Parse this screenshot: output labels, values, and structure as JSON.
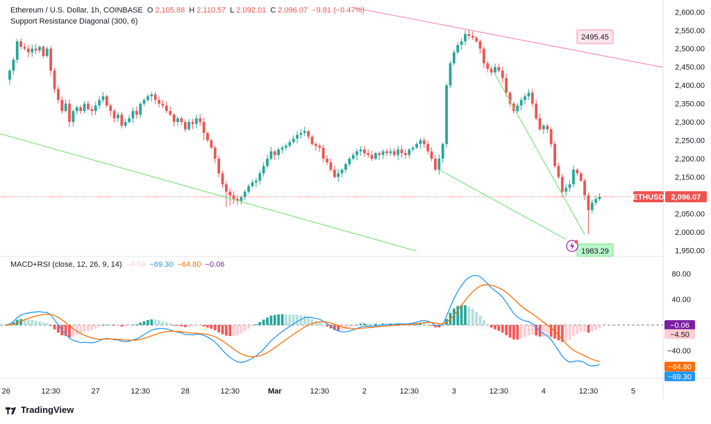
{
  "legend": {
    "symbol": "Ethereum / U.S. Dollar, 1h, COINBASE",
    "open_label": "O",
    "open": "2,105.88",
    "high_label": "H",
    "high": "2,110.57",
    "low_label": "L",
    "low": "2,092.01",
    "close_label": "C",
    "close": "2,096.07",
    "change": "−9.81 (−0.47%)",
    "indicator1": "Support Resistance Diagonal (300, 6)",
    "indicator2": "MACD+RSI (close, 12, 26, 9, 14)",
    "ind2_values": [
      "−4.50",
      "−69.30",
      "−64.80",
      "−0.06"
    ]
  },
  "colors": {
    "up": "#26a69a",
    "down": "#ef5350",
    "macd": "#2196f3",
    "signal": "#ff6d00",
    "hist_up_strong": "#26a69a",
    "hist_up_weak": "#b2dfdb",
    "hist_down_strong": "#ff5252",
    "hist_down_weak": "#ffcdd2",
    "support": "#7ee07e",
    "resistance": "#f48fb1",
    "price_line": "#ef5350",
    "rsi_badge": "#7b1fa2"
  },
  "price_badge": {
    "symbol": "ETHUSD",
    "value": "2,096.07"
  },
  "level_labels": {
    "resistance": "2495.45",
    "support": "1983.29"
  },
  "macd_badges": [
    "−0.06",
    "−4.50",
    "−64.80",
    "−69.30"
  ],
  "branding": {
    "name": "TradingView"
  },
  "chart_data": [
    {
      "type": "candlestick",
      "title": "Ethereum / U.S. Dollar, 1h, COINBASE",
      "y_ticks": [
        "2,600.00",
        "2,550.00",
        "2,500.00",
        "2,450.00",
        "2,400.00",
        "2,350.00",
        "2,300.00",
        "2,250.00",
        "2,200.00",
        "2,150.00",
        "2,100.00",
        "2,050.00",
        "2,000.00",
        "1,950.00"
      ],
      "ylim": [
        1945,
        2610
      ],
      "x_ticks": [
        "26",
        "12:30",
        "27",
        "12:30",
        "28",
        "12:30",
        "Mar",
        "12:30",
        "2",
        "12:30",
        "3",
        "12:30",
        "4",
        "12:30",
        "5"
      ],
      "x_tick_hours": [
        0,
        12,
        24,
        36,
        48,
        60,
        72,
        84,
        96,
        108,
        120,
        132,
        144,
        156,
        168
      ],
      "x_range_hours": [
        -1.6,
        176
      ],
      "close_path": [
        [
          0,
          2415
        ],
        [
          1,
          2440
        ],
        [
          2,
          2470
        ],
        [
          3,
          2520
        ],
        [
          4,
          2505
        ],
        [
          5,
          2500
        ],
        [
          6,
          2490
        ],
        [
          7,
          2500
        ],
        [
          8,
          2495
        ],
        [
          9,
          2505
        ],
        [
          10,
          2480
        ],
        [
          11,
          2500
        ],
        [
          12,
          2440
        ],
        [
          13,
          2390
        ],
        [
          14,
          2360
        ],
        [
          15,
          2330
        ],
        [
          16,
          2350
        ],
        [
          17,
          2300
        ],
        [
          18,
          2330
        ],
        [
          19,
          2340
        ],
        [
          20,
          2330
        ],
        [
          21,
          2350
        ],
        [
          22,
          2335
        ],
        [
          23,
          2330
        ],
        [
          24,
          2345
        ],
        [
          25,
          2360
        ],
        [
          26,
          2370
        ],
        [
          27,
          2345
        ],
        [
          28,
          2330
        ],
        [
          29,
          2310
        ],
        [
          30,
          2320
        ],
        [
          31,
          2290
        ],
        [
          32,
          2300
        ],
        [
          33,
          2310
        ],
        [
          34,
          2330
        ],
        [
          35,
          2320
        ],
        [
          36,
          2350
        ],
        [
          37,
          2360
        ],
        [
          38,
          2370
        ],
        [
          39,
          2375
        ],
        [
          40,
          2360
        ],
        [
          41,
          2350
        ],
        [
          42,
          2345
        ],
        [
          43,
          2330
        ],
        [
          44,
          2320
        ],
        [
          45,
          2300
        ],
        [
          46,
          2310
        ],
        [
          47,
          2300
        ],
        [
          48,
          2280
        ],
        [
          49,
          2300
        ],
        [
          50,
          2295
        ],
        [
          51,
          2310
        ],
        [
          52,
          2300
        ],
        [
          53,
          2270
        ],
        [
          54,
          2250
        ],
        [
          55,
          2230
        ],
        [
          56,
          2200
        ],
        [
          57,
          2160
        ],
        [
          58,
          2130
        ],
        [
          59,
          2110
        ],
        [
          60,
          2100
        ],
        [
          61,
          2090
        ],
        [
          62,
          2085
        ],
        [
          63,
          2095
        ],
        [
          64,
          2110
        ],
        [
          65,
          2125
        ],
        [
          66,
          2135
        ],
        [
          67,
          2140
        ],
        [
          68,
          2160
        ],
        [
          69,
          2180
        ],
        [
          70,
          2200
        ],
        [
          71,
          2220
        ],
        [
          72,
          2210
        ],
        [
          73,
          2225
        ],
        [
          74,
          2230
        ],
        [
          75,
          2235
        ],
        [
          76,
          2245
        ],
        [
          77,
          2255
        ],
        [
          78,
          2265
        ],
        [
          79,
          2270
        ],
        [
          80,
          2275
        ],
        [
          81,
          2260
        ],
        [
          82,
          2240
        ],
        [
          83,
          2235
        ],
        [
          84,
          2230
        ],
        [
          85,
          2200
        ],
        [
          86,
          2190
        ],
        [
          87,
          2170
        ],
        [
          88,
          2150
        ],
        [
          89,
          2160
        ],
        [
          90,
          2170
        ],
        [
          91,
          2185
        ],
        [
          92,
          2200
        ],
        [
          93,
          2210
        ],
        [
          94,
          2220
        ],
        [
          95,
          2225
        ],
        [
          96,
          2215
        ],
        [
          97,
          2210
        ],
        [
          98,
          2200
        ],
        [
          99,
          2215
        ],
        [
          100,
          2210
        ],
        [
          101,
          2220
        ],
        [
          102,
          2215
        ],
        [
          103,
          2220
        ],
        [
          104,
          2210
        ],
        [
          105,
          2225
        ],
        [
          106,
          2215
        ],
        [
          107,
          2210
        ],
        [
          108,
          2225
        ],
        [
          109,
          2230
        ],
        [
          110,
          2240
        ],
        [
          111,
          2250
        ],
        [
          112,
          2240
        ],
        [
          113,
          2220
        ],
        [
          114,
          2200
        ],
        [
          115,
          2170
        ],
        [
          116,
          2200
        ],
        [
          117,
          2240
        ],
        [
          118,
          2400
        ],
        [
          119,
          2460
        ],
        [
          120,
          2490
        ],
        [
          121,
          2510
        ],
        [
          122,
          2520
        ],
        [
          123,
          2540
        ],
        [
          124,
          2535
        ],
        [
          125,
          2530
        ],
        [
          126,
          2520
        ],
        [
          127,
          2500
        ],
        [
          128,
          2460
        ],
        [
          129,
          2445
        ],
        [
          130,
          2435
        ],
        [
          131,
          2450
        ],
        [
          132,
          2440
        ],
        [
          133,
          2420
        ],
        [
          134,
          2380
        ],
        [
          135,
          2350
        ],
        [
          136,
          2330
        ],
        [
          137,
          2345
        ],
        [
          138,
          2360
        ],
        [
          139,
          2370
        ],
        [
          140,
          2380
        ],
        [
          141,
          2350
        ],
        [
          142,
          2310
        ],
        [
          143,
          2280
        ],
        [
          144,
          2290
        ],
        [
          145,
          2280
        ],
        [
          146,
          2240
        ],
        [
          147,
          2180
        ],
        [
          148,
          2150
        ],
        [
          149,
          2110
        ],
        [
          150,
          2120
        ],
        [
          151,
          2130
        ],
        [
          152,
          2170
        ],
        [
          153,
          2160
        ],
        [
          154,
          2140
        ],
        [
          155,
          2100
        ],
        [
          156,
          2060
        ],
        [
          157,
          2080
        ],
        [
          158,
          2090
        ],
        [
          159,
          2096
        ]
      ],
      "support_lines": [
        {
          "from": [
            "-1.6",
            2268
          ],
          "to": [
            110,
            1948
          ]
        },
        {
          "from": [
            116,
            2170
          ],
          "to": [
            150,
            1980
          ]
        },
        {
          "from": [
            131,
            2430
          ],
          "to": [
            155,
            1993
          ]
        }
      ],
      "resistance_lines": [
        {
          "from": [
            93,
            2612
          ],
          "to": [
            176,
            2449
          ]
        }
      ],
      "current_price": 2096.07
    },
    {
      "type": "line",
      "title": "MACD+RSI (close, 12, 26, 9, 14)",
      "y_ticks": [
        "80.00",
        "40.00",
        "−40.00"
      ],
      "ylim": [
        -83,
        93
      ],
      "series_names": [
        "MACD",
        "Signal",
        "Histogram"
      ]
    }
  ]
}
